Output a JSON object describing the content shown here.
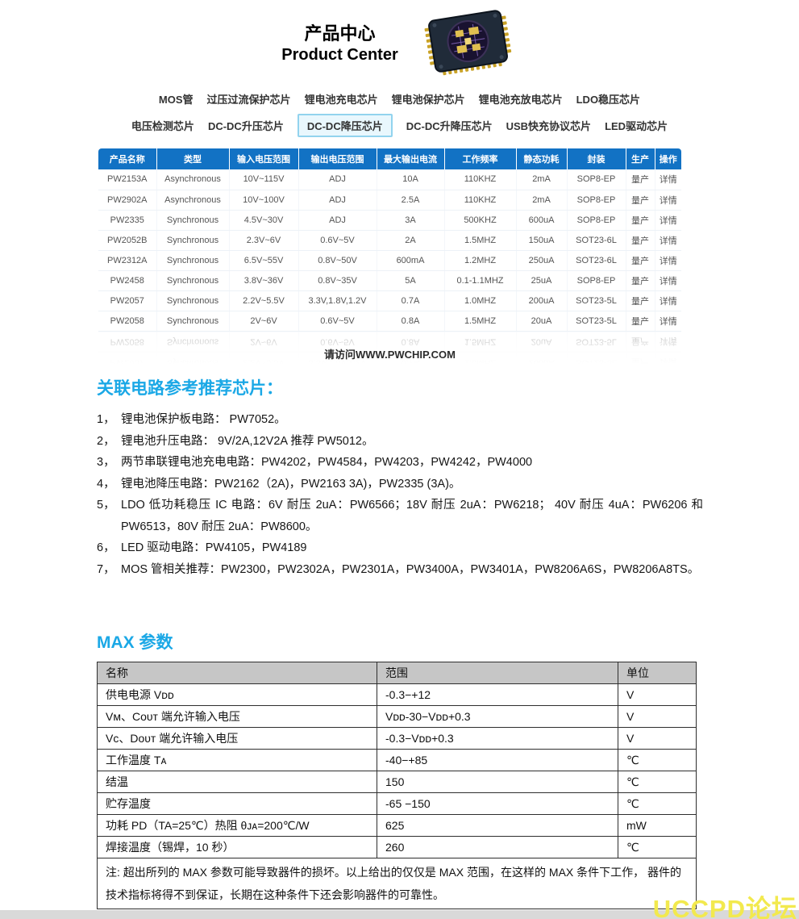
{
  "header": {
    "title_zh": "产品中心",
    "title_en": "Product Center"
  },
  "nav": {
    "row1": [
      {
        "label": "MOS管"
      },
      {
        "label": "过压过流保护芯片"
      },
      {
        "label": "锂电池充电芯片"
      },
      {
        "label": "锂电池保护芯片"
      },
      {
        "label": "锂电池充放电芯片"
      },
      {
        "label": "LDO稳压芯片"
      }
    ],
    "row2": [
      {
        "label": "电压检测芯片"
      },
      {
        "label": "DC-DC升压芯片"
      },
      {
        "label": "DC-DC降压芯片",
        "active": true
      },
      {
        "label": "DC-DC升降压芯片"
      },
      {
        "label": "USB快充协议芯片"
      },
      {
        "label": "LED驱动芯片"
      }
    ]
  },
  "product_table": {
    "columns": [
      "产品名称",
      "类型",
      "输入电压范围",
      "输出电压范围",
      "最大输出电流",
      "工作频率",
      "静态功耗",
      "封装",
      "生产",
      "操作"
    ],
    "rows": [
      {
        "name": "PW2153A",
        "type": "Asynchronous",
        "vin": "10V~115V",
        "vout": "ADJ",
        "iout": "10A",
        "freq": "110KHZ",
        "iq": "2mA",
        "pkg": "SOP8-EP",
        "prod": "量产",
        "action": "详情"
      },
      {
        "name": "PW2902A",
        "type": "Asynchronous",
        "vin": "10V~100V",
        "vout": "ADJ",
        "iout": "2.5A",
        "freq": "110KHZ",
        "iq": "2mA",
        "pkg": "SOP8-EP",
        "prod": "量产",
        "action": "详情"
      },
      {
        "name": "PW2335",
        "type": "Synchronous",
        "vin": "4.5V~30V",
        "vout": "ADJ",
        "iout": "3A",
        "freq": "500KHZ",
        "iq": "600uA",
        "pkg": "SOP8-EP",
        "prod": "量产",
        "action": "详情"
      },
      {
        "name": "PW2052B",
        "type": "Synchronous",
        "vin": "2.3V~6V",
        "vout": "0.6V~5V",
        "iout": "2A",
        "freq": "1.5MHZ",
        "iq": "150uA",
        "pkg": "SOT23-6L",
        "prod": "量产",
        "action": "详情"
      },
      {
        "name": "PW2312A",
        "type": "Synchronous",
        "vin": "6.5V~55V",
        "vout": "0.8V~50V",
        "iout": "600mA",
        "freq": "1.2MHZ",
        "iq": "250uA",
        "pkg": "SOT23-6L",
        "prod": "量产",
        "action": "详情"
      },
      {
        "name": "PW2458",
        "type": "Synchronous",
        "vin": "3.8V~36V",
        "vout": "0.8V~35V",
        "iout": "5A",
        "freq": "0.1-1.1MHZ",
        "iq": "25uA",
        "pkg": "SOP8-EP",
        "prod": "量产",
        "action": "详情"
      },
      {
        "name": "PW2057",
        "type": "Synchronous",
        "vin": "2.2V~5.5V",
        "vout": "3.3V,1.8V,1.2V",
        "iout": "0.7A",
        "freq": "1.0MHZ",
        "iq": "200uA",
        "pkg": "SOT23-5L",
        "prod": "量产",
        "action": "详情"
      },
      {
        "name": "PW2058",
        "type": "Synchronous",
        "vin": "2V~6V",
        "vout": "0.6V~5V",
        "iout": "0.8A",
        "freq": "1.5MHZ",
        "iq": "20uA",
        "pkg": "SOT23-5L",
        "prod": "量产",
        "action": "详情"
      }
    ],
    "watermark": "请访问WWW.PWCHIP.COM"
  },
  "related": {
    "title": "关联电路参考推荐芯片：",
    "items": [
      {
        "num": "1，",
        "text": "锂电池保护板电路： PW7052。"
      },
      {
        "num": "2，",
        "text": "锂电池升压电路： 9V/2A,12V2A 推荐 PW5012。"
      },
      {
        "num": "3，",
        "text": "两节串联锂电池充电电路：PW4202，PW4584，PW4203，PW4242，PW4000"
      },
      {
        "num": "4，",
        "text": "锂电池降压电路：PW2162（2A)，PW2163 3A)，PW2335 (3A)。"
      },
      {
        "num": "5，",
        "text": "LDO 低功耗稳压 IC 电路：6V 耐压 2uA：PW6566；18V 耐压 2uA：PW6218； 40V 耐压 4uA：PW6206 和 PW6513，80V 耐压 2uA：PW8600。"
      },
      {
        "num": "6，",
        "text": "LED 驱动电路：PW4105，PW4189"
      },
      {
        "num": "7，",
        "text": "MOS 管相关推荐：PW2300，PW2302A，PW2301A，PW3400A，PW3401A，PW8206A6S，PW8206A8TS。"
      }
    ]
  },
  "max": {
    "title": "MAX 参数",
    "columns": [
      "名称",
      "范围",
      "单位"
    ],
    "rows": [
      [
        "供电电源 Vᴅᴅ",
        "-0.3−+12",
        "V"
      ],
      [
        "Vᴍ、Cᴏᴜᴛ 端允许输入电压",
        "Vᴅᴅ-30−Vᴅᴅ+0.3",
        "V"
      ],
      [
        "Vᴄ、Dᴏᴜᴛ 端允许输入电压",
        "-0.3−Vᴅᴅ+0.3",
        "V"
      ],
      [
        "工作温度 Tᴀ",
        "-40−+85",
        "℃"
      ],
      [
        "结温",
        "150",
        "℃"
      ],
      [
        "贮存温度",
        "-65 −150",
        "℃"
      ],
      [
        "功耗 PD（TA=25℃）热阻 θᴊᴀ=200℃/W",
        "625",
        "mW"
      ],
      [
        "焊接温度（锡焊，10 秒）",
        "260",
        "℃"
      ]
    ],
    "note": "注: 超出所列的 MAX 参数可能导致器件的损坏。以上给出的仅仅是 MAX 范围，在这样的 MAX 条件下工作， 器件的技术指标将得不到保证，长期在这种条件下还会影响器件的可靠性。"
  },
  "footer": {
    "watermark": "UCCPD论坛"
  },
  "colors": {
    "accent": "#1BA8E6",
    "table_header": "#1272C4",
    "link": "#2B90E0",
    "forum_yellow": "#F2E94E"
  }
}
